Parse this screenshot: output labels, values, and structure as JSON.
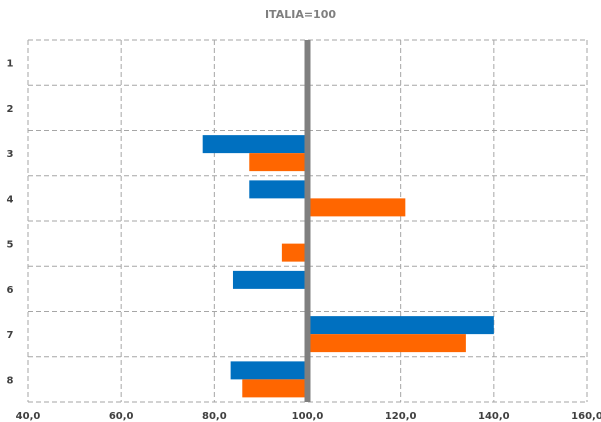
{
  "chart_data": {
    "type": "bar",
    "orientation": "horizontal",
    "title": "ITALIA=100",
    "categories": [
      "1",
      "2",
      "3",
      "4",
      "5",
      "6",
      "7",
      "8"
    ],
    "series": [
      {
        "color": "#0070c0",
        "values": [
          100.0,
          100.5,
          77.5,
          87.5,
          100.0,
          84.0,
          140.0,
          83.5
        ]
      },
      {
        "color": "#ff6600",
        "values": [
          100.5,
          100.0,
          87.5,
          121.0,
          94.5,
          99.5,
          134.0,
          86.0
        ]
      }
    ],
    "xlim": [
      40,
      160
    ],
    "xticks": [
      "40,0",
      "60,0",
      "80,0",
      "100,0",
      "120,0",
      "140,0",
      "160,0"
    ],
    "baseline": 100,
    "baseline_color": "#7f7f7f",
    "grid": true
  }
}
